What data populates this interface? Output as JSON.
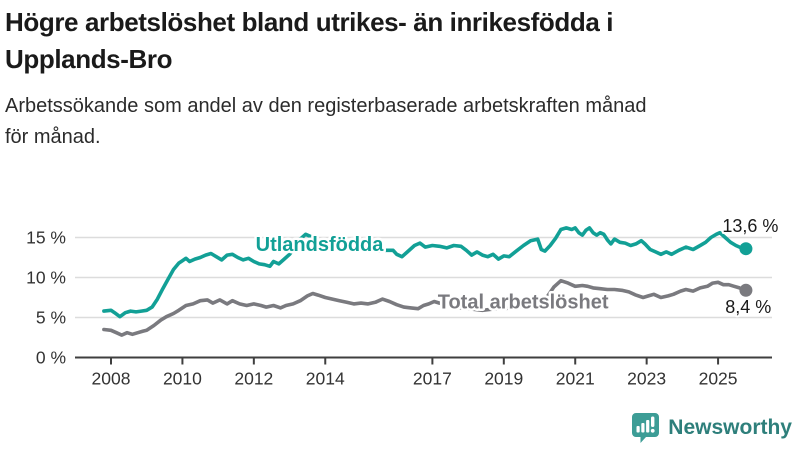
{
  "header": {
    "title_lines": [
      "Högre arbetslöshet bland utrikes- än inrikesfödda i",
      "Upplands-Bro"
    ],
    "subtitle_lines": [
      "Arbetssökande som andel av den registerbaserade arbetskraften månad",
      "för månad."
    ]
  },
  "branding": {
    "name": "Newsworthy",
    "icon": "bar-chart-speech-bubble",
    "bubble_color": "#3d9d96",
    "text_color": "#2e7f7b"
  },
  "chart_data": {
    "type": "line",
    "title": "Högre arbetslöshet bland utrikes- än inrikesfödda i Upplands-Bro",
    "subtitle": "Arbetssökande som andel av den registerbaserade arbetskraften månad för månad.",
    "xlabel": "",
    "ylabel": "",
    "x_ticks": [
      2008,
      2010,
      2012,
      2014,
      2017,
      2019,
      2021,
      2023,
      2025
    ],
    "y_ticks": [
      0,
      5,
      10,
      15
    ],
    "y_tick_suffix": " %",
    "xlim": [
      2007.6,
      2026.4
    ],
    "ylim": [
      0,
      17.8
    ],
    "grid": "horizontal",
    "legend_position": "inline-labels",
    "colors": {
      "grid": "#dcdcdc",
      "axis": "#3f3f3f",
      "tick_text": "#333333",
      "annotation_text": "#1a1a1a"
    },
    "series": [
      {
        "name": "Utlandsfödda",
        "color": "#12a096",
        "label": {
          "text": "Utlandsfödda",
          "x": 2012.05,
          "y": 13.3
        },
        "end_label": {
          "text": "13,6 %",
          "x": 2025.12,
          "y": 15.7
        },
        "end_value": 13.6,
        "points": [
          [
            2007.8,
            5.8
          ],
          [
            2008.0,
            5.9
          ],
          [
            2008.1,
            5.6
          ],
          [
            2008.25,
            5.1
          ],
          [
            2008.4,
            5.6
          ],
          [
            2008.55,
            5.8
          ],
          [
            2008.7,
            5.7
          ],
          [
            2008.85,
            5.8
          ],
          [
            2009.0,
            5.9
          ],
          [
            2009.15,
            6.3
          ],
          [
            2009.3,
            7.3
          ],
          [
            2009.45,
            8.6
          ],
          [
            2009.6,
            9.8
          ],
          [
            2009.75,
            11.0
          ],
          [
            2009.9,
            11.8
          ],
          [
            2010.0,
            12.1
          ],
          [
            2010.1,
            12.4
          ],
          [
            2010.2,
            12.0
          ],
          [
            2010.35,
            12.3
          ],
          [
            2010.5,
            12.5
          ],
          [
            2010.65,
            12.8
          ],
          [
            2010.8,
            13.0
          ],
          [
            2010.95,
            12.6
          ],
          [
            2011.1,
            12.2
          ],
          [
            2011.25,
            12.8
          ],
          [
            2011.4,
            12.9
          ],
          [
            2011.55,
            12.5
          ],
          [
            2011.7,
            12.2
          ],
          [
            2011.85,
            12.4
          ],
          [
            2012.0,
            12.0
          ],
          [
            2012.15,
            11.7
          ],
          [
            2012.3,
            11.6
          ],
          [
            2012.45,
            11.4
          ],
          [
            2012.55,
            12.0
          ],
          [
            2012.7,
            11.7
          ],
          [
            2012.85,
            12.3
          ],
          [
            2013.0,
            12.9
          ],
          [
            2013.15,
            13.8
          ],
          [
            2013.3,
            14.8
          ],
          [
            2013.45,
            15.4
          ],
          [
            2013.6,
            15.1
          ],
          [
            2013.75,
            14.4
          ],
          [
            2013.9,
            14.0
          ],
          [
            2014.1,
            13.8
          ],
          [
            2014.3,
            13.6
          ],
          [
            2014.5,
            13.7
          ],
          [
            2014.7,
            13.5
          ],
          [
            2014.9,
            13.4
          ],
          [
            2015.1,
            13.5
          ],
          [
            2015.3,
            13.4
          ],
          [
            2015.5,
            13.3
          ],
          [
            2015.7,
            13.4
          ],
          [
            2015.9,
            13.4
          ],
          [
            2016.0,
            12.9
          ],
          [
            2016.15,
            12.6
          ],
          [
            2016.3,
            13.2
          ],
          [
            2016.5,
            14.0
          ],
          [
            2016.65,
            14.3
          ],
          [
            2016.8,
            13.8
          ],
          [
            2017.0,
            14.0
          ],
          [
            2017.2,
            13.9
          ],
          [
            2017.4,
            13.7
          ],
          [
            2017.6,
            14.0
          ],
          [
            2017.8,
            13.9
          ],
          [
            2017.95,
            13.4
          ],
          [
            2018.1,
            12.8
          ],
          [
            2018.25,
            13.2
          ],
          [
            2018.4,
            12.8
          ],
          [
            2018.55,
            12.6
          ],
          [
            2018.7,
            12.9
          ],
          [
            2018.85,
            12.3
          ],
          [
            2019.0,
            12.7
          ],
          [
            2019.15,
            12.6
          ],
          [
            2019.35,
            13.3
          ],
          [
            2019.55,
            14.0
          ],
          [
            2019.75,
            14.6
          ],
          [
            2019.95,
            14.8
          ],
          [
            2020.05,
            13.5
          ],
          [
            2020.15,
            13.3
          ],
          [
            2020.3,
            14.0
          ],
          [
            2020.45,
            14.9
          ],
          [
            2020.6,
            16.0
          ],
          [
            2020.75,
            16.2
          ],
          [
            2020.9,
            16.0
          ],
          [
            2021.0,
            16.2
          ],
          [
            2021.1,
            15.6
          ],
          [
            2021.2,
            15.3
          ],
          [
            2021.3,
            15.9
          ],
          [
            2021.4,
            16.2
          ],
          [
            2021.5,
            15.6
          ],
          [
            2021.6,
            15.3
          ],
          [
            2021.7,
            15.6
          ],
          [
            2021.8,
            15.4
          ],
          [
            2021.9,
            14.7
          ],
          [
            2022.0,
            14.2
          ],
          [
            2022.1,
            14.8
          ],
          [
            2022.25,
            14.4
          ],
          [
            2022.4,
            14.3
          ],
          [
            2022.55,
            14.0
          ],
          [
            2022.7,
            14.2
          ],
          [
            2022.85,
            14.6
          ],
          [
            2022.95,
            14.2
          ],
          [
            2023.1,
            13.5
          ],
          [
            2023.25,
            13.2
          ],
          [
            2023.4,
            12.9
          ],
          [
            2023.55,
            13.2
          ],
          [
            2023.7,
            12.9
          ],
          [
            2023.9,
            13.4
          ],
          [
            2024.1,
            13.8
          ],
          [
            2024.3,
            13.5
          ],
          [
            2024.5,
            14.0
          ],
          [
            2024.65,
            14.4
          ],
          [
            2024.8,
            15.0
          ],
          [
            2024.95,
            15.4
          ],
          [
            2025.05,
            15.6
          ],
          [
            2025.2,
            15.0
          ],
          [
            2025.35,
            14.4
          ],
          [
            2025.5,
            14.0
          ],
          [
            2025.65,
            13.7
          ],
          [
            2025.78,
            13.6
          ]
        ]
      },
      {
        "name": "Total arbetslöshet",
        "color": "#7a7a7f",
        "label": {
          "text": "Total arbetslöshet",
          "x": 2017.15,
          "y": 6.15
        },
        "end_label": {
          "text": "8,4 %",
          "x": 2025.2,
          "y": 5.55
        },
        "end_value": 8.4,
        "points": [
          [
            2007.8,
            3.5
          ],
          [
            2008.0,
            3.4
          ],
          [
            2008.15,
            3.1
          ],
          [
            2008.3,
            2.8
          ],
          [
            2008.45,
            3.1
          ],
          [
            2008.6,
            2.9
          ],
          [
            2008.75,
            3.1
          ],
          [
            2008.9,
            3.3
          ],
          [
            2009.0,
            3.4
          ],
          [
            2009.2,
            4.0
          ],
          [
            2009.4,
            4.7
          ],
          [
            2009.55,
            5.1
          ],
          [
            2009.75,
            5.5
          ],
          [
            2009.9,
            5.9
          ],
          [
            2010.1,
            6.5
          ],
          [
            2010.3,
            6.7
          ],
          [
            2010.5,
            7.1
          ],
          [
            2010.7,
            7.2
          ],
          [
            2010.85,
            6.8
          ],
          [
            2011.05,
            7.2
          ],
          [
            2011.25,
            6.7
          ],
          [
            2011.4,
            7.1
          ],
          [
            2011.6,
            6.7
          ],
          [
            2011.8,
            6.5
          ],
          [
            2012.0,
            6.7
          ],
          [
            2012.2,
            6.5
          ],
          [
            2012.35,
            6.3
          ],
          [
            2012.55,
            6.5
          ],
          [
            2012.75,
            6.2
          ],
          [
            2012.9,
            6.5
          ],
          [
            2013.1,
            6.7
          ],
          [
            2013.3,
            7.1
          ],
          [
            2013.5,
            7.7
          ],
          [
            2013.65,
            8.0
          ],
          [
            2013.8,
            7.8
          ],
          [
            2014.0,
            7.5
          ],
          [
            2014.2,
            7.3
          ],
          [
            2014.4,
            7.1
          ],
          [
            2014.6,
            6.9
          ],
          [
            2014.8,
            6.7
          ],
          [
            2015.0,
            6.8
          ],
          [
            2015.2,
            6.7
          ],
          [
            2015.4,
            6.9
          ],
          [
            2015.6,
            7.3
          ],
          [
            2015.8,
            7.0
          ],
          [
            2016.0,
            6.6
          ],
          [
            2016.2,
            6.3
          ],
          [
            2016.4,
            6.2
          ],
          [
            2016.6,
            6.1
          ],
          [
            2016.75,
            6.5
          ],
          [
            2016.9,
            6.7
          ],
          [
            2017.05,
            7.0
          ],
          [
            2017.2,
            6.8
          ],
          [
            2017.4,
            6.6
          ],
          [
            2017.6,
            6.4
          ],
          [
            2017.8,
            6.2
          ],
          [
            2018.0,
            6.1
          ],
          [
            2018.2,
            6.0
          ],
          [
            2018.4,
            5.9
          ],
          [
            2018.6,
            6.0
          ],
          [
            2018.8,
            6.1
          ],
          [
            2019.0,
            6.1
          ],
          [
            2019.2,
            6.2
          ],
          [
            2019.4,
            6.3
          ],
          [
            2019.6,
            6.4
          ],
          [
            2019.8,
            6.5
          ],
          [
            2020.0,
            6.7
          ],
          [
            2020.2,
            7.5
          ],
          [
            2020.4,
            8.8
          ],
          [
            2020.6,
            9.6
          ],
          [
            2020.8,
            9.3
          ],
          [
            2021.0,
            8.9
          ],
          [
            2021.2,
            9.0
          ],
          [
            2021.35,
            8.9
          ],
          [
            2021.5,
            8.7
          ],
          [
            2021.7,
            8.6
          ],
          [
            2021.9,
            8.5
          ],
          [
            2022.1,
            8.5
          ],
          [
            2022.3,
            8.4
          ],
          [
            2022.5,
            8.2
          ],
          [
            2022.7,
            7.8
          ],
          [
            2022.9,
            7.5
          ],
          [
            2023.05,
            7.7
          ],
          [
            2023.2,
            7.9
          ],
          [
            2023.4,
            7.5
          ],
          [
            2023.6,
            7.7
          ],
          [
            2023.75,
            7.9
          ],
          [
            2023.95,
            8.3
          ],
          [
            2024.1,
            8.5
          ],
          [
            2024.3,
            8.3
          ],
          [
            2024.5,
            8.7
          ],
          [
            2024.7,
            8.9
          ],
          [
            2024.85,
            9.3
          ],
          [
            2025.0,
            9.4
          ],
          [
            2025.15,
            9.1
          ],
          [
            2025.3,
            9.1
          ],
          [
            2025.45,
            8.9
          ],
          [
            2025.6,
            8.7
          ],
          [
            2025.78,
            8.4
          ]
        ]
      }
    ]
  }
}
